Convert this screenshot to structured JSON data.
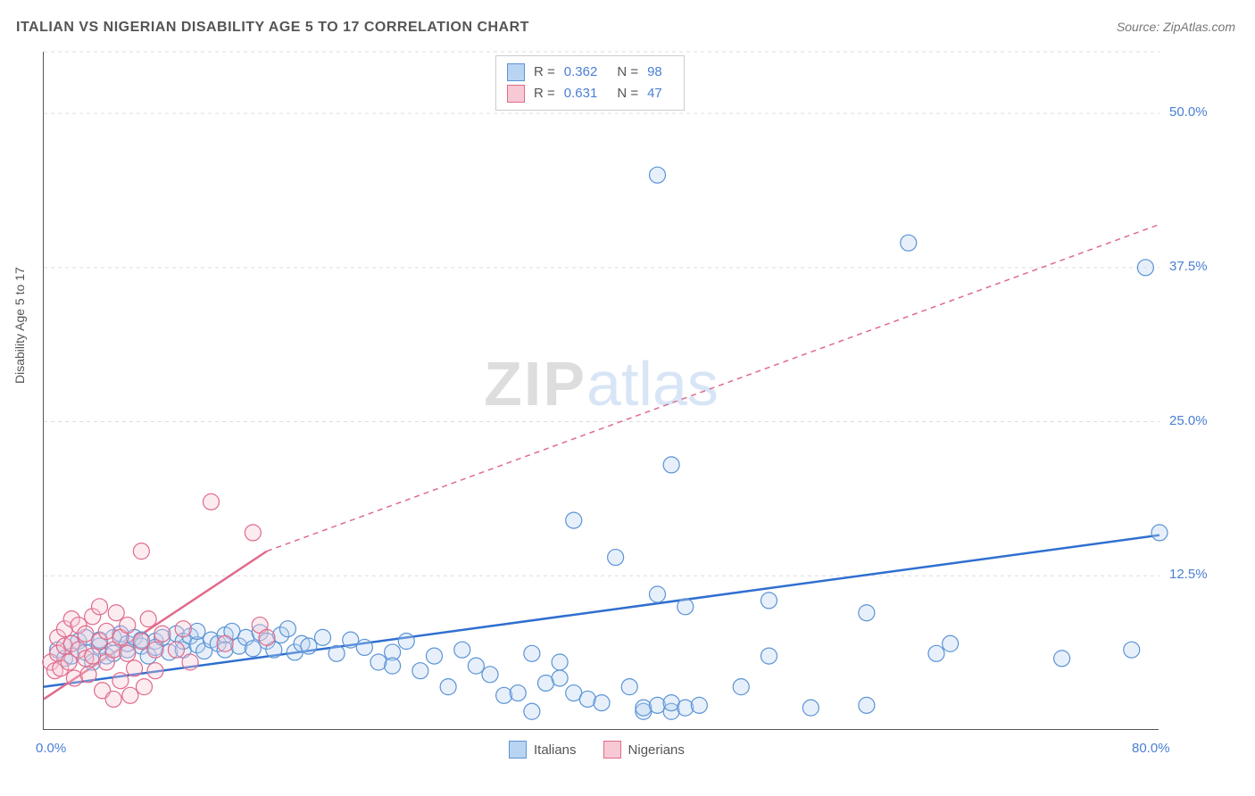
{
  "title": "ITALIAN VS NIGERIAN DISABILITY AGE 5 TO 17 CORRELATION CHART",
  "source_label": "Source: ",
  "source_value": "ZipAtlas.com",
  "ylabel": "Disability Age 5 to 17",
  "watermark_zip": "ZIP",
  "watermark_atlas": "atlas",
  "chart": {
    "type": "scatter-correlation",
    "background_color": "#ffffff",
    "grid_color": "#dddddd",
    "axis_color": "#555555",
    "tick_label_color": "#4a7fd4",
    "xlim": [
      0,
      80
    ],
    "ylim": [
      0,
      55
    ],
    "x_tick_labels": {
      "left": "0.0%",
      "right": "80.0%"
    },
    "y_tick_labels": [
      "12.5%",
      "25.0%",
      "37.5%",
      "50.0%"
    ],
    "y_tick_values": [
      12.5,
      25.0,
      37.5,
      50.0
    ],
    "marker_radius": 9,
    "marker_fill_opacity": 0.35,
    "marker_stroke_width": 1.2,
    "trend_line_width": 2.5,
    "trend_dash_pattern": "6,5"
  },
  "legend_top": {
    "r_label": "R =",
    "n_label": "N =",
    "rows": [
      {
        "swatch_fill": "#b9d4f2",
        "swatch_stroke": "#5b93d6",
        "r_value": "0.362",
        "n_value": "98"
      },
      {
        "swatch_fill": "#f7c9d4",
        "swatch_stroke": "#e06b8b",
        "r_value": "0.631",
        "n_value": "47"
      }
    ]
  },
  "legend_bottom": {
    "items": [
      {
        "swatch_fill": "#b9d4f2",
        "swatch_stroke": "#5b93d6",
        "label": "Italians"
      },
      {
        "swatch_fill": "#f7c9d4",
        "swatch_stroke": "#e06b8b",
        "label": "Nigerians"
      }
    ]
  },
  "series": [
    {
      "name": "Italians",
      "color_fill": "#b9d4f2",
      "color_stroke": "#5b93d6",
      "trend_color": "#2f6fd0",
      "trend": {
        "x1": 0,
        "y1": 3.5,
        "x2": 80,
        "y2": 15.8
      },
      "points": [
        [
          1,
          6.5
        ],
        [
          1.5,
          5.8
        ],
        [
          2,
          7
        ],
        [
          2,
          6
        ],
        [
          2.5,
          7.2
        ],
        [
          3,
          6.3
        ],
        [
          3,
          7.5
        ],
        [
          3.5,
          5.5
        ],
        [
          4,
          6.8
        ],
        [
          4,
          7.3
        ],
        [
          4.5,
          6
        ],
        [
          5,
          7.5
        ],
        [
          5,
          6.2
        ],
        [
          5.5,
          7.8
        ],
        [
          6,
          6.5
        ],
        [
          6,
          7
        ],
        [
          6.5,
          7.5
        ],
        [
          7,
          6.8
        ],
        [
          7,
          7.3
        ],
        [
          7.5,
          6
        ],
        [
          8,
          7.2
        ],
        [
          8,
          6.7
        ],
        [
          8.5,
          7.5
        ],
        [
          9,
          6.3
        ],
        [
          9.5,
          7.8
        ],
        [
          10,
          6.5
        ],
        [
          10,
          7.2
        ],
        [
          10.5,
          7.6
        ],
        [
          11,
          6.9
        ],
        [
          11,
          8
        ],
        [
          11.5,
          6.4
        ],
        [
          12,
          7.3
        ],
        [
          12.5,
          7
        ],
        [
          13,
          7.7
        ],
        [
          13,
          6.5
        ],
        [
          13.5,
          8
        ],
        [
          14,
          6.8
        ],
        [
          14.5,
          7.5
        ],
        [
          15,
          6.6
        ],
        [
          15.5,
          7.9
        ],
        [
          16,
          7.2
        ],
        [
          16.5,
          6.5
        ],
        [
          17,
          7.7
        ],
        [
          17.5,
          8.2
        ],
        [
          18,
          6.3
        ],
        [
          18.5,
          7
        ],
        [
          19,
          6.8
        ],
        [
          20,
          7.5
        ],
        [
          21,
          6.2
        ],
        [
          22,
          7.3
        ],
        [
          23,
          6.7
        ],
        [
          24,
          5.5
        ],
        [
          25,
          6.3
        ],
        [
          25,
          5.2
        ],
        [
          26,
          7.2
        ],
        [
          27,
          4.8
        ],
        [
          28,
          6
        ],
        [
          29,
          3.5
        ],
        [
          30,
          6.5
        ],
        [
          31,
          5.2
        ],
        [
          32,
          4.5
        ],
        [
          33,
          2.8
        ],
        [
          34,
          3
        ],
        [
          35,
          6.2
        ],
        [
          35,
          1.5
        ],
        [
          36,
          3.8
        ],
        [
          37,
          4.2
        ],
        [
          37,
          5.5
        ],
        [
          38,
          3
        ],
        [
          39,
          2.5
        ],
        [
          38,
          17
        ],
        [
          40,
          2.2
        ],
        [
          41,
          14
        ],
        [
          42,
          3.5
        ],
        [
          43,
          1.5
        ],
        [
          43,
          1.8
        ],
        [
          44,
          11
        ],
        [
          44,
          2
        ],
        [
          44,
          45
        ],
        [
          45,
          21.5
        ],
        [
          45,
          1.5
        ],
        [
          45,
          2.2
        ],
        [
          46,
          10
        ],
        [
          46,
          1.8
        ],
        [
          47,
          2
        ],
        [
          50,
          3.5
        ],
        [
          52,
          10.5
        ],
        [
          52,
          6
        ],
        [
          55,
          1.8
        ],
        [
          59,
          2
        ],
        [
          59,
          9.5
        ],
        [
          62,
          39.5
        ],
        [
          64,
          6.2
        ],
        [
          65,
          7
        ],
        [
          73,
          5.8
        ],
        [
          78,
          6.5
        ],
        [
          79,
          37.5
        ],
        [
          80,
          16
        ]
      ]
    },
    {
      "name": "Nigerians",
      "color_fill": "#f7c9d4",
      "color_stroke": "#e06b8b",
      "trend_color": "#e06b8b",
      "trend": {
        "x1": 0,
        "y1": 2.5,
        "x2": 16,
        "y2": 14.5
      },
      "trend_dashed_extension": {
        "x1": 16,
        "y1": 14.5,
        "x2": 80,
        "y2": 41
      },
      "points": [
        [
          0.5,
          5.5
        ],
        [
          0.8,
          4.8
        ],
        [
          1,
          6.2
        ],
        [
          1,
          7.5
        ],
        [
          1.2,
          5
        ],
        [
          1.5,
          8.2
        ],
        [
          1.5,
          6.8
        ],
        [
          1.8,
          5.5
        ],
        [
          2,
          7
        ],
        [
          2,
          9
        ],
        [
          2.2,
          4.2
        ],
        [
          2.5,
          6.5
        ],
        [
          2.5,
          8.5
        ],
        [
          3,
          5.8
        ],
        [
          3,
          7.8
        ],
        [
          3.2,
          4.5
        ],
        [
          3.5,
          9.2
        ],
        [
          3.5,
          6
        ],
        [
          4,
          7.2
        ],
        [
          4,
          10
        ],
        [
          4.2,
          3.2
        ],
        [
          4.5,
          5.5
        ],
        [
          4.5,
          8
        ],
        [
          5,
          6.5
        ],
        [
          5,
          2.5
        ],
        [
          5.2,
          9.5
        ],
        [
          5.5,
          7.5
        ],
        [
          5.5,
          4
        ],
        [
          6,
          8.5
        ],
        [
          6,
          6.2
        ],
        [
          6.2,
          2.8
        ],
        [
          6.5,
          5
        ],
        [
          7,
          14.5
        ],
        [
          7,
          7.2
        ],
        [
          7.2,
          3.5
        ],
        [
          7.5,
          9
        ],
        [
          8,
          6.5
        ],
        [
          8,
          4.8
        ],
        [
          8.5,
          7.8
        ],
        [
          9.5,
          6.5
        ],
        [
          10,
          8.2
        ],
        [
          10.5,
          5.5
        ],
        [
          12,
          18.5
        ],
        [
          13,
          7
        ],
        [
          15,
          16
        ],
        [
          15.5,
          8.5
        ],
        [
          16,
          7.5
        ]
      ]
    }
  ]
}
